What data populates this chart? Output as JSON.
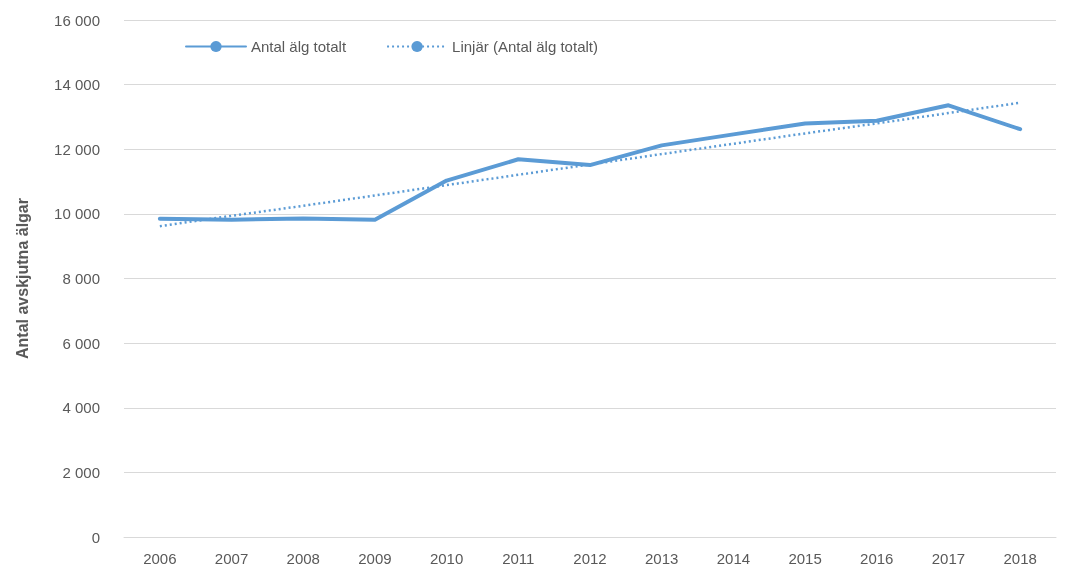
{
  "chart_data": {
    "type": "line",
    "ylabel": "Antal avskjutna älgar",
    "categories": [
      "2006",
      "2007",
      "2008",
      "2009",
      "2010",
      "2011",
      "2012",
      "2013",
      "2014",
      "2015",
      "2016",
      "2017",
      "2018"
    ],
    "series": [
      {
        "name": "Antal älg totalt",
        "color": "#5b9bd5",
        "line_style": "solid",
        "values": [
          9850,
          9820,
          9860,
          9820,
          11030,
          11690,
          11510,
          12120,
          12460,
          12800,
          12880,
          13360,
          12620
        ]
      },
      {
        "name": "Linjär (Antal älg totalt)",
        "color": "#5b9bd5",
        "line_style": "dotted",
        "values": [
          9620,
          9940,
          10250,
          10570,
          10890,
          11210,
          11530,
          11850,
          12170,
          12490,
          12800,
          13120,
          13440
        ]
      }
    ],
    "ylim": [
      0,
      16000
    ],
    "yticks": [
      {
        "value": 0,
        "label": "0"
      },
      {
        "value": 2000,
        "label": "2 000"
      },
      {
        "value": 4000,
        "label": "4 000"
      },
      {
        "value": 6000,
        "label": "6 000"
      },
      {
        "value": 8000,
        "label": "8 000"
      },
      {
        "value": 10000,
        "label": "10 000"
      },
      {
        "value": 12000,
        "label": "12 000"
      },
      {
        "value": 14000,
        "label": "14 000"
      },
      {
        "value": 16000,
        "label": "16 000"
      }
    ],
    "grid": "y",
    "legend": "top left",
    "marker": "none"
  }
}
